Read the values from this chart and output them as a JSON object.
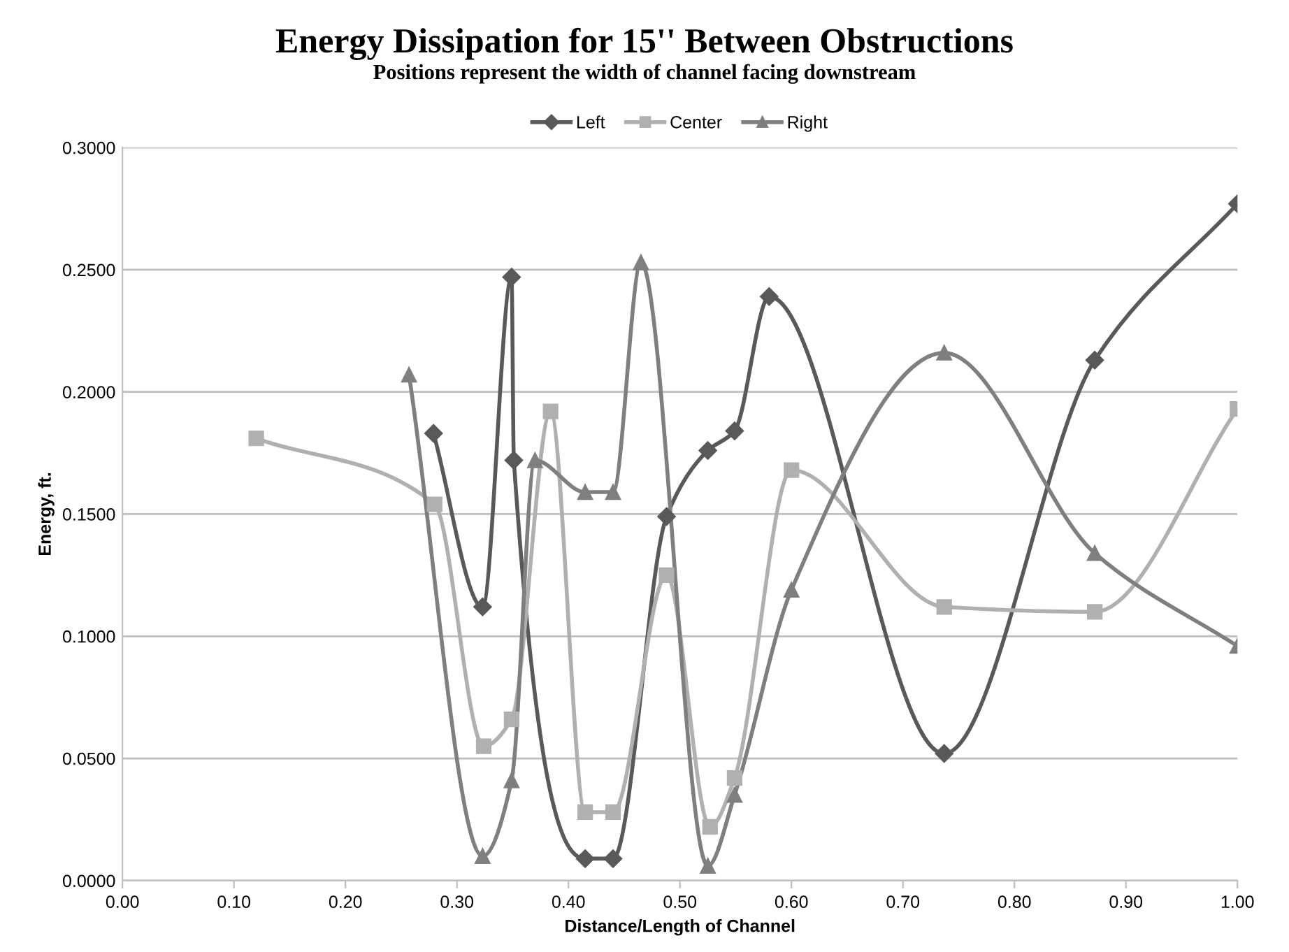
{
  "chart_data": {
    "type": "line",
    "title": "Energy Dissipation for 15'' Between Obstructions",
    "subtitle": "Positions represent the width of channel facing downstream",
    "xlabel": "Distance/Length of Channel",
    "ylabel": "Energy, ft.",
    "xlim": [
      0,
      1
    ],
    "ylim": [
      0,
      0.3
    ],
    "xticks": [
      {
        "value": 0,
        "label": "0.00"
      },
      {
        "value": 0.1,
        "label": "0.10"
      },
      {
        "value": 0.2,
        "label": "0.20"
      },
      {
        "value": 0.3,
        "label": "0.30"
      },
      {
        "value": 0.4,
        "label": "0.40"
      },
      {
        "value": 0.5,
        "label": "0.50"
      },
      {
        "value": 0.6,
        "label": "0.60"
      },
      {
        "value": 0.7,
        "label": "0.70"
      },
      {
        "value": 0.8,
        "label": "0.80"
      },
      {
        "value": 0.9,
        "label": "0.90"
      },
      {
        "value": 1,
        "label": "1.00"
      }
    ],
    "yticks": [
      {
        "value": 0,
        "label": "0.0000"
      },
      {
        "value": 0.05,
        "label": "0.0500"
      },
      {
        "value": 0.1,
        "label": "0.1000"
      },
      {
        "value": 0.15,
        "label": "0.1500"
      },
      {
        "value": 0.2,
        "label": "0.2000"
      },
      {
        "value": 0.25,
        "label": "0.2500"
      },
      {
        "value": 0.3,
        "label": "0.3000"
      }
    ],
    "grid": "y",
    "legend": "top",
    "series": [
      {
        "name": "Left",
        "color": "#595959",
        "marker": "diamond",
        "x": [
          0.279,
          0.323,
          0.349,
          0.351,
          0.415,
          0.44,
          0.488,
          0.525,
          0.549,
          0.58,
          0.737,
          0.872,
          1.0
        ],
        "values": [
          0.183,
          0.112,
          0.247,
          0.172,
          0.009,
          0.009,
          0.149,
          0.176,
          0.184,
          0.239,
          0.052,
          0.213,
          0.277
        ]
      },
      {
        "name": "Center",
        "color": "#b0b0b0",
        "marker": "square",
        "x": [
          0.12,
          0.28,
          0.324,
          0.349,
          0.384,
          0.415,
          0.44,
          0.488,
          0.527,
          0.549,
          0.6,
          0.737,
          0.872,
          1.0
        ],
        "values": [
          0.181,
          0.154,
          0.055,
          0.066,
          0.192,
          0.028,
          0.028,
          0.125,
          0.022,
          0.042,
          0.168,
          0.112,
          0.11,
          0.193
        ]
      },
      {
        "name": "Right",
        "color": "#7f7f7f",
        "marker": "triangle",
        "x": [
          0.257,
          0.323,
          0.349,
          0.37,
          0.415,
          0.44,
          0.465,
          0.525,
          0.549,
          0.6,
          0.737,
          0.872,
          1.0
        ],
        "values": [
          0.207,
          0.01,
          0.041,
          0.172,
          0.159,
          0.159,
          0.253,
          0.006,
          0.035,
          0.119,
          0.216,
          0.134,
          0.096
        ]
      }
    ]
  }
}
